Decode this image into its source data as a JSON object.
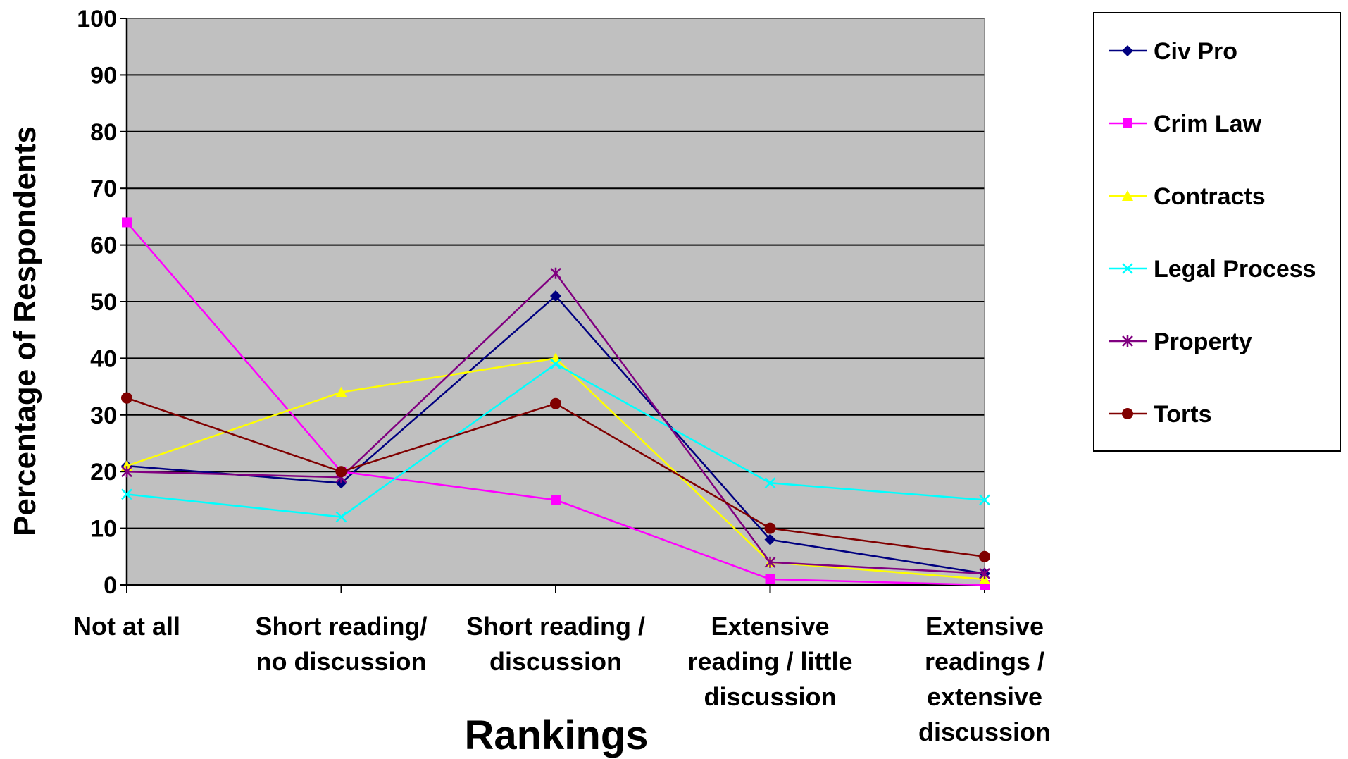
{
  "chart_data": {
    "type": "line",
    "title": "",
    "xlabel": "Rankings",
    "ylabel": "Percentage of Respondents",
    "ylim": [
      0,
      100
    ],
    "yticks": [
      0,
      10,
      20,
      30,
      40,
      50,
      60,
      70,
      80,
      90,
      100
    ],
    "grid": true,
    "legend_position": "right",
    "plot_background": "#C0C0C0",
    "categories": [
      [
        "Not at all"
      ],
      [
        "Short reading/",
        "no discussion"
      ],
      [
        "Short reading /",
        "discussion"
      ],
      [
        "Extensive",
        "reading / little",
        "discussion"
      ],
      [
        "Extensive",
        "readings /",
        "extensive",
        "discussion"
      ]
    ],
    "series": [
      {
        "name": "Civ Pro",
        "color": "#000080",
        "marker": "diamond",
        "values": [
          21,
          18,
          51,
          8,
          2
        ]
      },
      {
        "name": "Crim Law",
        "color": "#FF00FF",
        "marker": "square",
        "values": [
          64,
          20,
          15,
          1,
          0
        ]
      },
      {
        "name": "Contracts",
        "color": "#FFFF00",
        "marker": "triangle",
        "values": [
          21,
          34,
          40,
          4,
          1
        ]
      },
      {
        "name": "Legal Process",
        "color": "#00FFFF",
        "marker": "x",
        "values": [
          16,
          12,
          39,
          18,
          15
        ]
      },
      {
        "name": "Property",
        "color": "#800080",
        "marker": "star",
        "values": [
          20,
          19,
          55,
          4,
          2
        ]
      },
      {
        "name": "Torts",
        "color": "#800000",
        "marker": "circle",
        "values": [
          33,
          20,
          32,
          10,
          5
        ]
      }
    ]
  }
}
